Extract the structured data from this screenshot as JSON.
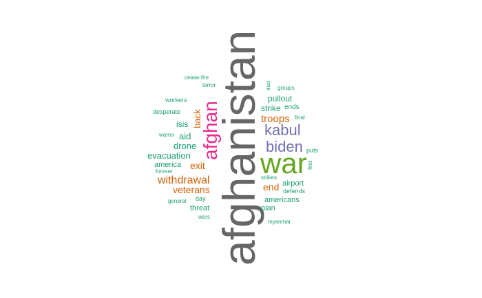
{
  "colors": {
    "grey": "#666666",
    "green": "#66a61e",
    "purple": "#7570b3",
    "pink": "#e7298a",
    "orange": "#d95f02",
    "teal": "#1b9e77"
  },
  "words": [
    {
      "text": "afghanistan",
      "color": "grey",
      "rotated": true
    },
    {
      "text": "war",
      "color": "green",
      "rotated": false
    },
    {
      "text": "afghan",
      "color": "pink",
      "rotated": true
    },
    {
      "text": "kabul",
      "color": "purple",
      "rotated": false
    },
    {
      "text": "biden",
      "color": "purple",
      "rotated": false
    },
    {
      "text": "withdrawal",
      "color": "orange",
      "rotated": false
    },
    {
      "text": "veterans",
      "color": "orange",
      "rotated": false
    },
    {
      "text": "troops",
      "color": "orange",
      "rotated": false
    },
    {
      "text": "exit",
      "color": "orange",
      "rotated": false
    },
    {
      "text": "end",
      "color": "orange",
      "rotated": false
    },
    {
      "text": "back",
      "color": "orange",
      "rotated": true
    },
    {
      "text": "evacuation",
      "color": "teal",
      "rotated": false
    },
    {
      "text": "drone",
      "color": "teal",
      "rotated": false
    },
    {
      "text": "strike",
      "color": "teal",
      "rotated": false
    },
    {
      "text": "pullout",
      "color": "teal",
      "rotated": false
    },
    {
      "text": "aid",
      "color": "teal",
      "rotated": false
    },
    {
      "text": "isis",
      "color": "teal",
      "rotated": false
    },
    {
      "text": "america",
      "color": "teal",
      "rotated": false
    },
    {
      "text": "americans",
      "color": "teal",
      "rotated": false
    },
    {
      "text": "airport",
      "color": "teal",
      "rotated": false
    },
    {
      "text": "threat",
      "color": "teal",
      "rotated": false
    },
    {
      "text": "plan",
      "color": "teal",
      "rotated": false
    },
    {
      "text": "ends",
      "color": "teal",
      "rotated": false
    },
    {
      "text": "defends",
      "color": "teal",
      "rotated": false
    },
    {
      "text": "workers",
      "color": "teal",
      "rotated": false
    },
    {
      "text": "desperate",
      "color": "teal",
      "rotated": false
    },
    {
      "text": "puts",
      "color": "teal",
      "rotated": false
    },
    {
      "text": "day",
      "color": "teal",
      "rotated": false
    },
    {
      "text": "strikes",
      "color": "teal",
      "rotated": false
    },
    {
      "text": "terror",
      "color": "teal",
      "rotated": false
    },
    {
      "text": "groups",
      "color": "teal",
      "rotated": false
    },
    {
      "text": "iraq",
      "color": "teal",
      "rotated": true
    },
    {
      "text": "final",
      "color": "teal",
      "rotated": false
    },
    {
      "text": "find",
      "color": "teal",
      "rotated": true
    },
    {
      "text": "cease-fire",
      "color": "teal",
      "rotated": false
    },
    {
      "text": "warns",
      "color": "teal",
      "rotated": false
    },
    {
      "text": "forever",
      "color": "teal",
      "rotated": false
    },
    {
      "text": "general",
      "color": "teal",
      "rotated": false
    },
    {
      "text": "wars",
      "color": "teal",
      "rotated": false
    },
    {
      "text": "myanmar",
      "color": "teal",
      "rotated": false
    }
  ]
}
